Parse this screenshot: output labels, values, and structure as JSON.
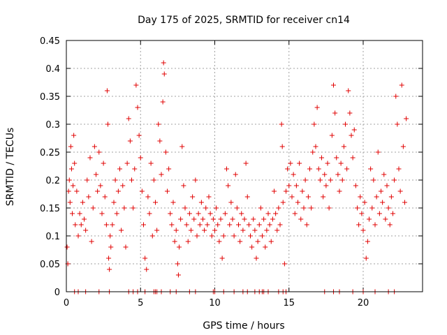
{
  "chart_data": {
    "type": "scatter",
    "title": "Day 175 of 2025, SRMTID for receiver cn14",
    "xlabel": "GPS time / hours",
    "ylabel": "SRMTID / TECUs",
    "xlim": [
      0,
      24
    ],
    "ylim": [
      0,
      0.45
    ],
    "xticks": [
      0,
      5,
      10,
      15,
      20
    ],
    "xtick_labels": [
      "0",
      "5",
      "10",
      "15",
      "20"
    ],
    "yticks": [
      0,
      0.05,
      0.1,
      0.15,
      0.2,
      0.25,
      0.3,
      0.35,
      0.4,
      0.45
    ],
    "ytick_labels": [
      "0",
      "0.05",
      "0.1",
      "0.15",
      "0.2",
      "0.25",
      "0.3",
      "0.35",
      "0.4",
      "0.45"
    ],
    "grid": true,
    "marker": "+",
    "color": "#e00000",
    "series": [
      {
        "name": "SRMTID",
        "points": [
          [
            0.05,
            0.08
          ],
          [
            0.1,
            0.05
          ],
          [
            0.15,
            0.18
          ],
          [
            0.2,
            0.2
          ],
          [
            0.25,
            0.16
          ],
          [
            0.3,
            0.26
          ],
          [
            0.35,
            0.22
          ],
          [
            0.4,
            0.14
          ],
          [
            0.45,
            0.19
          ],
          [
            0.5,
            0.28
          ],
          [
            0.55,
            0.23
          ],
          [
            0.6,
            0.12
          ],
          [
            0.7,
            0.18
          ],
          [
            0.8,
            0.1
          ],
          [
            0.9,
            0.14
          ],
          [
            1.0,
            0.12
          ],
          [
            1.1,
            0.16
          ],
          [
            1.2,
            0.13
          ],
          [
            1.3,
            0.11
          ],
          [
            1.4,
            0.2
          ],
          [
            1.5,
            0.17
          ],
          [
            1.6,
            0.24
          ],
          [
            1.7,
            0.09
          ],
          [
            1.8,
            0.15
          ],
          [
            1.9,
            0.26
          ],
          [
            2.0,
            0.21
          ],
          [
            2.1,
            0.18
          ],
          [
            2.2,
            0.25
          ],
          [
            2.3,
            0.19
          ],
          [
            2.4,
            0.14
          ],
          [
            2.5,
            0.23
          ],
          [
            2.6,
            0.17
          ],
          [
            2.7,
            0.12
          ],
          [
            2.75,
            0.36
          ],
          [
            2.8,
            0.3
          ],
          [
            2.85,
            0.06
          ],
          [
            2.9,
            0.04
          ],
          [
            2.95,
            0.1
          ],
          [
            3.0,
            0.08
          ],
          [
            3.1,
            0.12
          ],
          [
            3.2,
            0.16
          ],
          [
            3.3,
            0.2
          ],
          [
            3.4,
            0.14
          ],
          [
            3.5,
            0.18
          ],
          [
            3.6,
            0.22
          ],
          [
            3.7,
            0.11
          ],
          [
            3.8,
            0.19
          ],
          [
            3.9,
            0.15
          ],
          [
            4.0,
            0.08
          ],
          [
            4.1,
            0.23
          ],
          [
            4.2,
            0.31
          ],
          [
            4.3,
            0.27
          ],
          [
            4.4,
            0.2
          ],
          [
            4.5,
            0.15
          ],
          [
            4.6,
            0.22
          ],
          [
            4.7,
            0.37
          ],
          [
            4.8,
            0.33
          ],
          [
            4.9,
            0.28
          ],
          [
            5.0,
            0.24
          ],
          [
            5.1,
            0.18
          ],
          [
            5.2,
            0.12
          ],
          [
            5.3,
            0.06
          ],
          [
            5.4,
            0.04
          ],
          [
            5.5,
            0.17
          ],
          [
            5.6,
            0.14
          ],
          [
            5.7,
            0.23
          ],
          [
            5.8,
            0.1
          ],
          [
            5.9,
            0.2
          ],
          [
            6.0,
            0.16
          ],
          [
            6.1,
            0.11
          ],
          [
            6.2,
            0.3
          ],
          [
            6.3,
            0.27
          ],
          [
            6.4,
            0.21
          ],
          [
            6.5,
            0.34
          ],
          [
            6.55,
            0.41
          ],
          [
            6.6,
            0.39
          ],
          [
            6.7,
            0.25
          ],
          [
            6.8,
            0.18
          ],
          [
            6.9,
            0.22
          ],
          [
            7.0,
            0.14
          ],
          [
            7.1,
            0.12
          ],
          [
            7.2,
            0.16
          ],
          [
            7.3,
            0.09
          ],
          [
            7.4,
            0.11
          ],
          [
            7.5,
            0.05
          ],
          [
            7.55,
            0.03
          ],
          [
            7.6,
            0.08
          ],
          [
            7.7,
            0.13
          ],
          [
            7.8,
            0.26
          ],
          [
            7.9,
            0.19
          ],
          [
            8.0,
            0.15
          ],
          [
            8.1,
            0.12
          ],
          [
            8.2,
            0.09
          ],
          [
            8.3,
            0.14
          ],
          [
            8.4,
            0.11
          ],
          [
            8.5,
            0.17
          ],
          [
            8.6,
            0.13
          ],
          [
            8.7,
            0.2
          ],
          [
            8.8,
            0.1
          ],
          [
            8.9,
            0.14
          ],
          [
            9.0,
            0.12
          ],
          [
            9.1,
            0.16
          ],
          [
            9.2,
            0.13
          ],
          [
            9.3,
            0.11
          ],
          [
            9.4,
            0.15
          ],
          [
            9.5,
            0.12
          ],
          [
            9.6,
            0.17
          ],
          [
            9.7,
            0.14
          ],
          [
            9.8,
            0.1
          ],
          [
            9.9,
            0.13
          ],
          [
            10.0,
            0.11
          ],
          [
            10.1,
            0.15
          ],
          [
            10.2,
            0.12
          ],
          [
            10.3,
            0.09
          ],
          [
            10.4,
            0.13
          ],
          [
            10.5,
            0.06
          ],
          [
            10.6,
            0.1
          ],
          [
            10.7,
            0.14
          ],
          [
            10.8,
            0.22
          ],
          [
            10.9,
            0.19
          ],
          [
            11.0,
            0.12
          ],
          [
            11.1,
            0.16
          ],
          [
            11.2,
            0.13
          ],
          [
            11.3,
            0.1
          ],
          [
            11.4,
            0.21
          ],
          [
            11.5,
            0.15
          ],
          [
            11.6,
            0.12
          ],
          [
            11.7,
            0.09
          ],
          [
            11.8,
            0.14
          ],
          [
            11.9,
            0.11
          ],
          [
            12.0,
            0.13
          ],
          [
            12.1,
            0.23
          ],
          [
            12.2,
            0.17
          ],
          [
            12.3,
            0.12
          ],
          [
            12.4,
            0.1
          ],
          [
            12.5,
            0.08
          ],
          [
            12.6,
            0.13
          ],
          [
            12.7,
            0.11
          ],
          [
            12.8,
            0.06
          ],
          [
            12.9,
            0.09
          ],
          [
            13.0,
            0.12
          ],
          [
            13.1,
            0.15
          ],
          [
            13.2,
            0.1
          ],
          [
            13.3,
            0.13
          ],
          [
            13.4,
            0.08
          ],
          [
            13.5,
            0.11
          ],
          [
            13.6,
            0.14
          ],
          [
            13.7,
            0.12
          ],
          [
            13.8,
            0.09
          ],
          [
            13.9,
            0.13
          ],
          [
            14.0,
            0.18
          ],
          [
            14.1,
            0.14
          ],
          [
            14.2,
            0.11
          ],
          [
            14.3,
            0.15
          ],
          [
            14.4,
            0.12
          ],
          [
            14.5,
            0.3
          ],
          [
            14.55,
            0.26
          ],
          [
            14.6,
            0.16
          ],
          [
            14.7,
            0.05
          ],
          [
            14.8,
            0.18
          ],
          [
            14.9,
            0.22
          ],
          [
            15.0,
            0.19
          ],
          [
            15.1,
            0.23
          ],
          [
            15.2,
            0.17
          ],
          [
            15.3,
            0.21
          ],
          [
            15.4,
            0.14
          ],
          [
            15.5,
            0.19
          ],
          [
            15.6,
            0.16
          ],
          [
            15.7,
            0.23
          ],
          [
            15.8,
            0.13
          ],
          [
            15.9,
            0.18
          ],
          [
            16.0,
            0.15
          ],
          [
            16.1,
            0.2
          ],
          [
            16.2,
            0.12
          ],
          [
            16.3,
            0.17
          ],
          [
            16.4,
            0.22
          ],
          [
            16.5,
            0.15
          ],
          [
            16.6,
            0.25
          ],
          [
            16.7,
            0.3
          ],
          [
            16.8,
            0.26
          ],
          [
            16.9,
            0.33
          ],
          [
            17.0,
            0.22
          ],
          [
            17.1,
            0.2
          ],
          [
            17.2,
            0.24
          ],
          [
            17.3,
            0.17
          ],
          [
            17.4,
            0.21
          ],
          [
            17.5,
            0.19
          ],
          [
            17.6,
            0.23
          ],
          [
            17.7,
            0.15
          ],
          [
            17.8,
            0.2
          ],
          [
            17.9,
            0.28
          ],
          [
            18.0,
            0.37
          ],
          [
            18.1,
            0.32
          ],
          [
            18.2,
            0.24
          ],
          [
            18.3,
            0.21
          ],
          [
            18.4,
            0.18
          ],
          [
            18.5,
            0.23
          ],
          [
            18.6,
            0.2
          ],
          [
            18.7,
            0.26
          ],
          [
            18.8,
            0.3
          ],
          [
            18.9,
            0.22
          ],
          [
            19.0,
            0.36
          ],
          [
            19.1,
            0.32
          ],
          [
            19.2,
            0.28
          ],
          [
            19.3,
            0.24
          ],
          [
            19.4,
            0.29
          ],
          [
            19.5,
            0.19
          ],
          [
            19.6,
            0.15
          ],
          [
            19.7,
            0.12
          ],
          [
            19.8,
            0.17
          ],
          [
            19.9,
            0.14
          ],
          [
            20.0,
            0.11
          ],
          [
            20.1,
            0.16
          ],
          [
            20.2,
            0.06
          ],
          [
            20.3,
            0.09
          ],
          [
            20.4,
            0.13
          ],
          [
            20.5,
            0.22
          ],
          [
            20.6,
            0.15
          ],
          [
            20.7,
            0.2
          ],
          [
            20.8,
            0.12
          ],
          [
            20.9,
            0.17
          ],
          [
            21.0,
            0.25
          ],
          [
            21.1,
            0.14
          ],
          [
            21.2,
            0.18
          ],
          [
            21.3,
            0.16
          ],
          [
            21.4,
            0.21
          ],
          [
            21.5,
            0.13
          ],
          [
            21.6,
            0.19
          ],
          [
            21.7,
            0.15
          ],
          [
            21.8,
            0.12
          ],
          [
            21.9,
            0.17
          ],
          [
            22.0,
            0.14
          ],
          [
            22.1,
            0.2
          ],
          [
            22.2,
            0.35
          ],
          [
            22.3,
            0.3
          ],
          [
            22.4,
            0.22
          ],
          [
            22.5,
            0.18
          ],
          [
            22.6,
            0.37
          ],
          [
            22.7,
            0.26
          ],
          [
            22.8,
            0.16
          ],
          [
            22.9,
            0.31
          ]
        ],
        "zero_points": [
          0.55,
          0.8,
          1.3,
          2.2,
          2.9,
          4.2,
          4.5,
          4.8,
          5.3,
          5.9,
          6.0,
          6.1,
          6.4,
          7.0,
          7.4,
          8.3,
          8.7,
          9.9,
          10.0,
          10.6,
          11.3,
          11.9,
          12.2,
          12.7,
          13.0,
          13.2,
          13.3,
          13.6,
          14.3,
          14.6,
          14.8,
          17.4,
          18.0,
          18.4,
          19.3,
          20.0,
          20.8,
          21.7,
          22.1
        ]
      }
    ]
  }
}
